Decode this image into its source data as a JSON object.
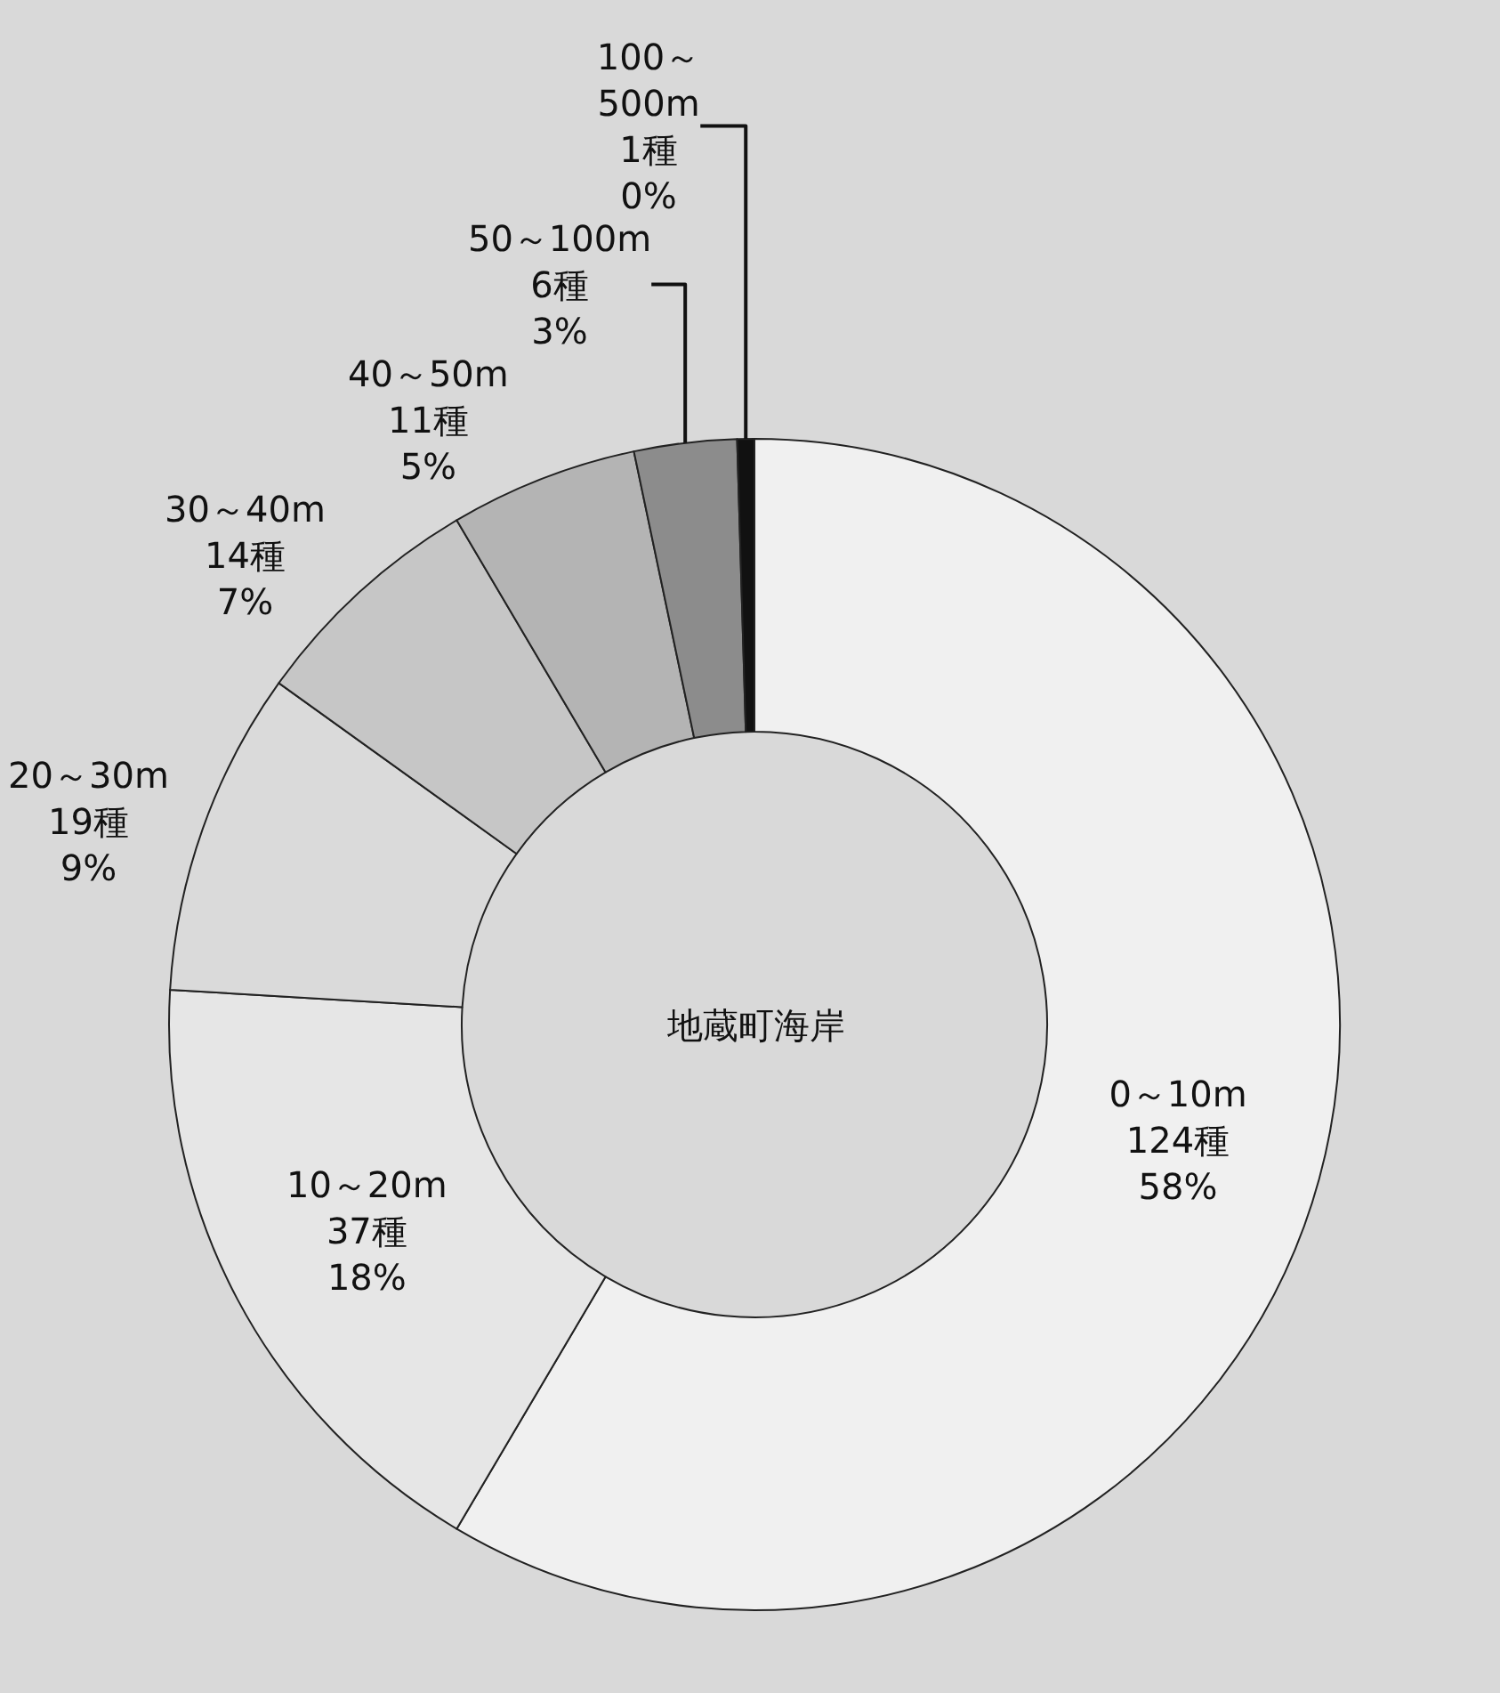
{
  "chart_data": {
    "type": "donut",
    "categories": [
      "0～10m",
      "10～20m",
      "20～30m",
      "30～40m",
      "40～50m",
      "50～100m",
      "100～\n500m"
    ],
    "values": [
      124,
      37,
      19,
      14,
      11,
      6,
      1
    ],
    "value_labels": [
      "124種\n58%",
      "37種\n18%",
      "19種\n9%",
      "14種\n7%",
      "11種\n5%",
      "6種\n3%",
      "1種\n0%"
    ],
    "colors": [
      "#f0f0f0",
      "#e6e6e6",
      "#dadada",
      "#c6c6c6",
      "#b4b4b4",
      "#8c8c8c",
      "#111111"
    ],
    "annotations": [
      "地蔵町海岸"
    ],
    "legend": false
  }
}
